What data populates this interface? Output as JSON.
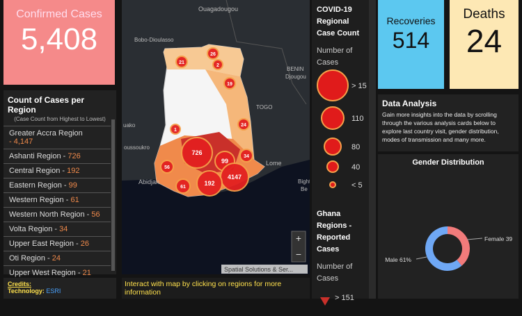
{
  "confirmed": {
    "label": "Confirmed Cases",
    "value": "5,408"
  },
  "regions_panel": {
    "title": "Count of Cases per Region",
    "subtitle": "(Case Count from Highest to Lowest)",
    "rows": [
      {
        "name": "Greater Accra Region",
        "count": "- 4,147"
      },
      {
        "name": "Ashanti Region -",
        "count": "726"
      },
      {
        "name": "Central Region -",
        "count": "192"
      },
      {
        "name": "Eastern Region -",
        "count": "99"
      },
      {
        "name": "Western Region -",
        "count": "61"
      },
      {
        "name": "Western North Region -",
        "count": "56"
      },
      {
        "name": "Volta Region -",
        "count": "34"
      },
      {
        "name": "Upper East Region -",
        "count": "26"
      },
      {
        "name": "Oti Region -",
        "count": "24"
      },
      {
        "name": "Upper West Region -",
        "count": "21"
      }
    ]
  },
  "credits": {
    "title": "Credits:",
    "technology_label": "Technology:",
    "technology": "ESRI"
  },
  "map": {
    "places": [
      "Ouagadougou",
      "Bobo-Dioulasso",
      "BENIN",
      "Djougou",
      "TOGO",
      "Lome",
      "Abidjan",
      "oussoukro",
      "uako",
      "Bight",
      "Be"
    ],
    "bubbles": [
      26,
      2,
      21,
      19,
      1,
      24,
      726,
      99,
      34,
      56,
      4147,
      192,
      61
    ],
    "attribution": "Spatial Solutions & Ser...",
    "zoom_in": "+",
    "zoom_out": "−"
  },
  "map_hint": "Interact with map by clicking on regions for more information",
  "legend": {
    "title": "COVID-19 Regional Case Count",
    "subtitle": "Number of Cases",
    "items": [
      "> 15",
      "110",
      "80",
      "40",
      "< 5"
    ],
    "title2": "Ghana Regions - Reported Cases",
    "subtitle2": "Number of Cases",
    "items2": [
      "> 151"
    ]
  },
  "recoveries": {
    "label": "Recoveries",
    "value": "514"
  },
  "deaths": {
    "label": "Deaths",
    "value": "24"
  },
  "analysis": {
    "title": "Data Analysis",
    "text": "Gain more insights into the data by scrolling through the various analysis cards below to explore last country visit, gender distribution, modes of transmission and many more."
  },
  "gender": {
    "title": "Gender Distribution",
    "labels": [
      "Female 39",
      "Male 61%"
    ],
    "values": [
      39,
      61
    ]
  }
}
